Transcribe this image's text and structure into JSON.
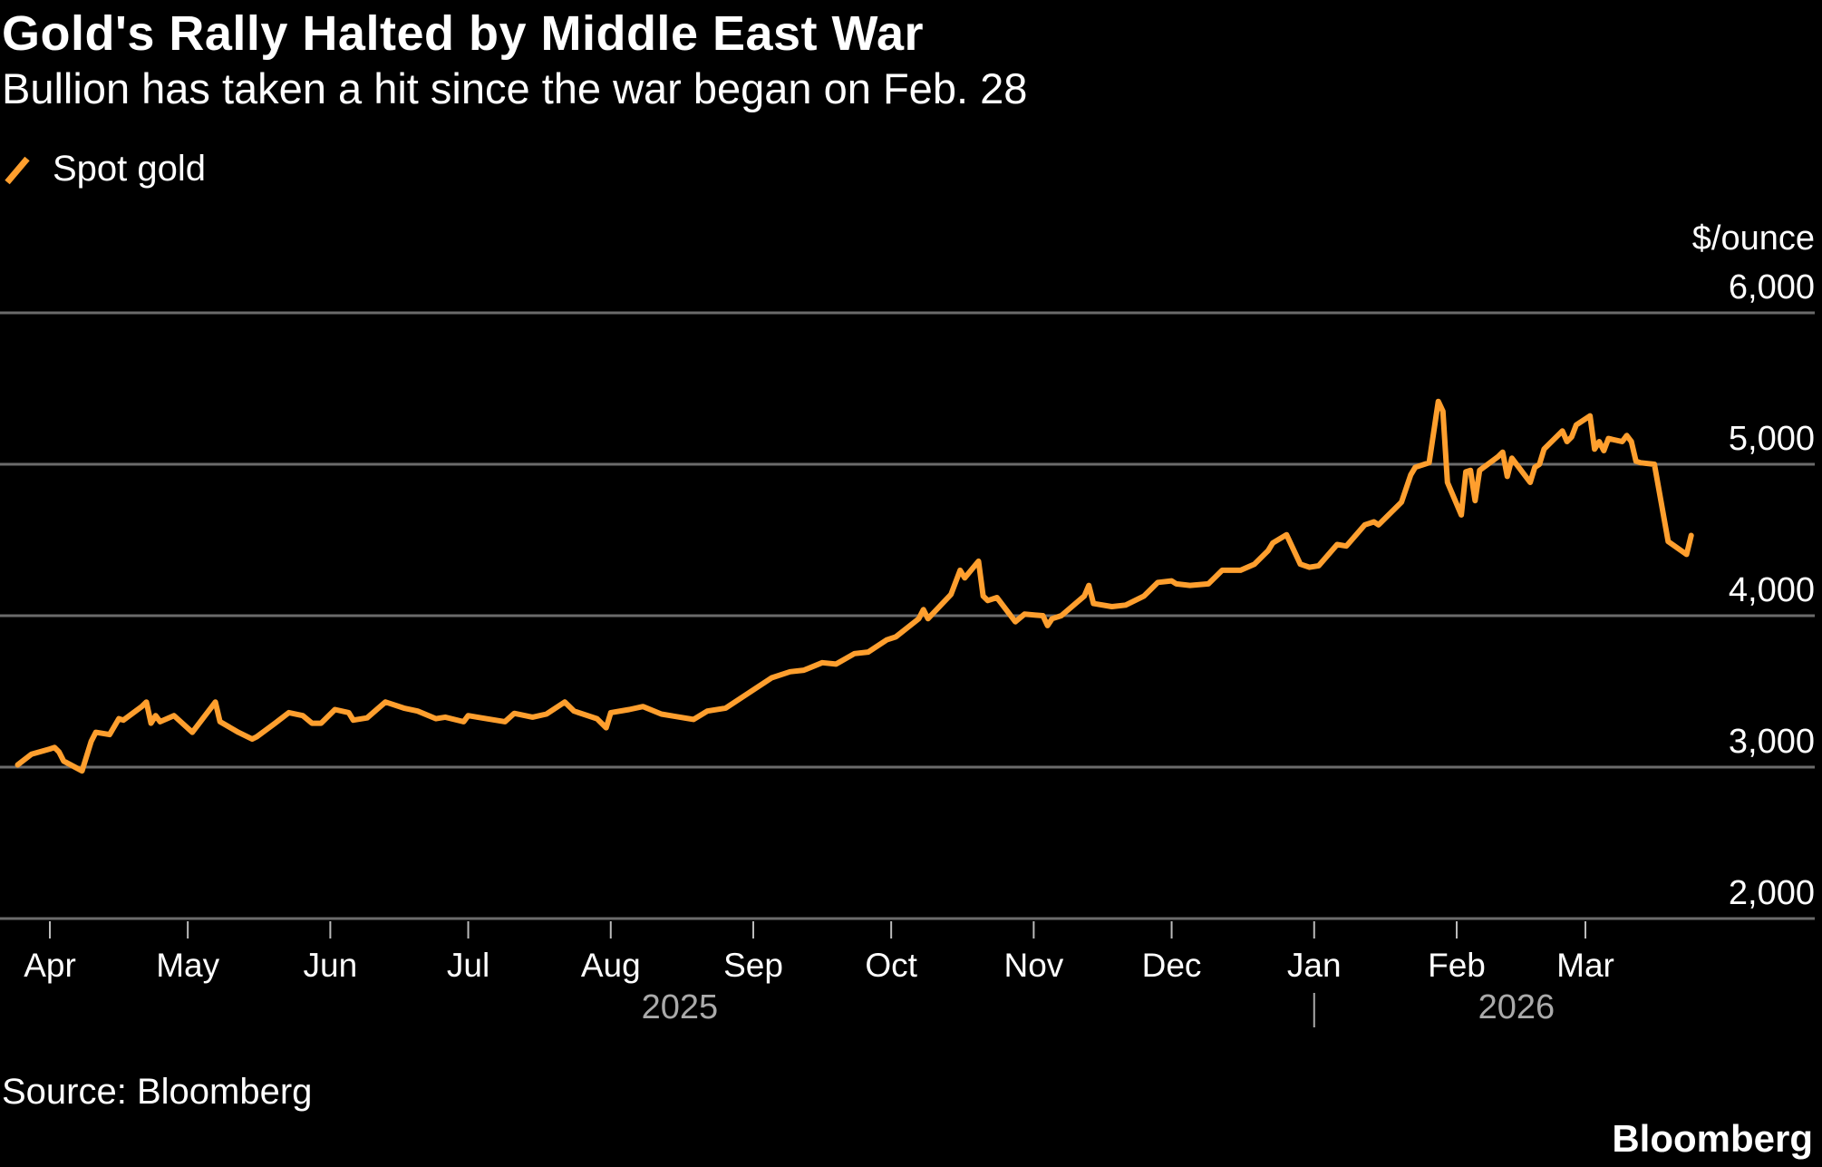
{
  "chart_data": {
    "type": "line",
    "title": "Gold's Rally Halted by Middle East War",
    "subtitle": "Bullion has taken a hit since the war began on Feb. 28",
    "ylabel": "$/ounce",
    "xlabel": "",
    "ylim": [
      2000,
      6000
    ],
    "yticks": [
      6000,
      5000,
      4000,
      3000,
      2000
    ],
    "ytick_labels": [
      "6,000",
      "5,000",
      "4,000",
      "3,000",
      "2,000"
    ],
    "grid": true,
    "legend_placement": "top-left",
    "xticks": [
      {
        "date": "2025-04-01",
        "label": "Apr"
      },
      {
        "date": "2025-05-01",
        "label": "May"
      },
      {
        "date": "2025-06-01",
        "label": "Jun"
      },
      {
        "date": "2025-07-01",
        "label": "Jul"
      },
      {
        "date": "2025-08-01",
        "label": "Aug"
      },
      {
        "date": "2025-09-01",
        "label": "Sep"
      },
      {
        "date": "2025-10-01",
        "label": "Oct"
      },
      {
        "date": "2025-11-01",
        "label": "Nov"
      },
      {
        "date": "2025-12-01",
        "label": "Dec"
      },
      {
        "date": "2026-01-01",
        "label": "Jan"
      },
      {
        "date": "2026-02-01",
        "label": "Feb"
      },
      {
        "date": "2026-03-01",
        "label": "Mar"
      }
    ],
    "years": [
      {
        "label": "2025",
        "center": "2025-08-16"
      },
      {
        "label": "2026",
        "center": "2026-02-14"
      }
    ],
    "year_divider": "2026-01-01",
    "series": [
      {
        "name": "Spot gold",
        "color": "#FF9F2E",
        "points": [
          [
            "2025-03-25",
            3015
          ],
          [
            "2025-03-28",
            3085
          ],
          [
            "2025-04-01",
            3120
          ],
          [
            "2025-04-02",
            3130
          ],
          [
            "2025-04-03",
            3100
          ],
          [
            "2025-04-04",
            3040
          ],
          [
            "2025-04-08",
            2975
          ],
          [
            "2025-04-10",
            3170
          ],
          [
            "2025-04-11",
            3230
          ],
          [
            "2025-04-14",
            3215
          ],
          [
            "2025-04-16",
            3320
          ],
          [
            "2025-04-17",
            3310
          ],
          [
            "2025-04-21",
            3400
          ],
          [
            "2025-04-22",
            3430
          ],
          [
            "2025-04-23",
            3290
          ],
          [
            "2025-04-24",
            3340
          ],
          [
            "2025-04-25",
            3300
          ],
          [
            "2025-04-28",
            3340
          ],
          [
            "2025-05-02",
            3230
          ],
          [
            "2025-05-06",
            3390
          ],
          [
            "2025-05-07",
            3430
          ],
          [
            "2025-05-08",
            3300
          ],
          [
            "2025-05-12",
            3230
          ],
          [
            "2025-05-15",
            3185
          ],
          [
            "2025-05-16",
            3200
          ],
          [
            "2025-05-20",
            3290
          ],
          [
            "2025-05-23",
            3360
          ],
          [
            "2025-05-26",
            3340
          ],
          [
            "2025-05-28",
            3290
          ],
          [
            "2025-05-30",
            3290
          ],
          [
            "2025-06-02",
            3380
          ],
          [
            "2025-06-05",
            3360
          ],
          [
            "2025-06-06",
            3310
          ],
          [
            "2025-06-09",
            3325
          ],
          [
            "2025-06-13",
            3430
          ],
          [
            "2025-06-17",
            3390
          ],
          [
            "2025-06-20",
            3370
          ],
          [
            "2025-06-24",
            3320
          ],
          [
            "2025-06-26",
            3330
          ],
          [
            "2025-06-30",
            3300
          ],
          [
            "2025-07-01",
            3340
          ],
          [
            "2025-07-03",
            3330
          ],
          [
            "2025-07-09",
            3300
          ],
          [
            "2025-07-11",
            3355
          ],
          [
            "2025-07-15",
            3330
          ],
          [
            "2025-07-18",
            3350
          ],
          [
            "2025-07-22",
            3430
          ],
          [
            "2025-07-24",
            3370
          ],
          [
            "2025-07-29",
            3320
          ],
          [
            "2025-07-31",
            3260
          ],
          [
            "2025-08-01",
            3360
          ],
          [
            "2025-08-05",
            3380
          ],
          [
            "2025-08-08",
            3400
          ],
          [
            "2025-08-12",
            3350
          ],
          [
            "2025-08-15",
            3335
          ],
          [
            "2025-08-19",
            3315
          ],
          [
            "2025-08-22",
            3370
          ],
          [
            "2025-08-26",
            3390
          ],
          [
            "2025-08-29",
            3450
          ],
          [
            "2025-09-02",
            3530
          ],
          [
            "2025-09-05",
            3590
          ],
          [
            "2025-09-09",
            3630
          ],
          [
            "2025-09-12",
            3640
          ],
          [
            "2025-09-16",
            3690
          ],
          [
            "2025-09-19",
            3680
          ],
          [
            "2025-09-23",
            3750
          ],
          [
            "2025-09-26",
            3760
          ],
          [
            "2025-09-30",
            3840
          ],
          [
            "2025-10-02",
            3860
          ],
          [
            "2025-10-07",
            3980
          ],
          [
            "2025-10-08",
            4040
          ],
          [
            "2025-10-09",
            3980
          ],
          [
            "2025-10-14",
            4140
          ],
          [
            "2025-10-16",
            4300
          ],
          [
            "2025-10-17",
            4250
          ],
          [
            "2025-10-20",
            4360
          ],
          [
            "2025-10-21",
            4130
          ],
          [
            "2025-10-22",
            4100
          ],
          [
            "2025-10-24",
            4120
          ],
          [
            "2025-10-28",
            3960
          ],
          [
            "2025-10-30",
            4010
          ],
          [
            "2025-11-03",
            4000
          ],
          [
            "2025-11-04",
            3935
          ],
          [
            "2025-11-05",
            3980
          ],
          [
            "2025-11-07",
            4000
          ],
          [
            "2025-11-12",
            4130
          ],
          [
            "2025-11-13",
            4200
          ],
          [
            "2025-11-14",
            4080
          ],
          [
            "2025-11-18",
            4060
          ],
          [
            "2025-11-21",
            4070
          ],
          [
            "2025-11-25",
            4130
          ],
          [
            "2025-11-28",
            4220
          ],
          [
            "2025-12-01",
            4230
          ],
          [
            "2025-12-02",
            4210
          ],
          [
            "2025-12-05",
            4200
          ],
          [
            "2025-12-09",
            4210
          ],
          [
            "2025-12-12",
            4300
          ],
          [
            "2025-12-16",
            4300
          ],
          [
            "2025-12-19",
            4340
          ],
          [
            "2025-12-22",
            4430
          ],
          [
            "2025-12-23",
            4480
          ],
          [
            "2025-12-26",
            4535
          ],
          [
            "2025-12-29",
            4340
          ],
          [
            "2025-12-31",
            4320
          ],
          [
            "2026-01-02",
            4330
          ],
          [
            "2026-01-06",
            4470
          ],
          [
            "2026-01-08",
            4460
          ],
          [
            "2026-01-12",
            4600
          ],
          [
            "2026-01-14",
            4620
          ],
          [
            "2026-01-15",
            4600
          ],
          [
            "2026-01-20",
            4750
          ],
          [
            "2026-01-22",
            4930
          ],
          [
            "2026-01-23",
            4980
          ],
          [
            "2026-01-26",
            5010
          ],
          [
            "2026-01-28",
            5415
          ],
          [
            "2026-01-29",
            5350
          ],
          [
            "2026-01-30",
            4880
          ],
          [
            "2026-02-02",
            4665
          ],
          [
            "2026-02-03",
            4950
          ],
          [
            "2026-02-04",
            4960
          ],
          [
            "2026-02-05",
            4760
          ],
          [
            "2026-02-06",
            4960
          ],
          [
            "2026-02-10",
            5050
          ],
          [
            "2026-02-11",
            5080
          ],
          [
            "2026-02-12",
            4920
          ],
          [
            "2026-02-13",
            5040
          ],
          [
            "2026-02-17",
            4880
          ],
          [
            "2026-02-18",
            4980
          ],
          [
            "2026-02-19",
            5000
          ],
          [
            "2026-02-20",
            5100
          ],
          [
            "2026-02-24",
            5220
          ],
          [
            "2026-02-25",
            5150
          ],
          [
            "2026-02-26",
            5180
          ],
          [
            "2026-02-27",
            5260
          ],
          [
            "2026-03-02",
            5320
          ],
          [
            "2026-03-03",
            5100
          ],
          [
            "2026-03-04",
            5150
          ],
          [
            "2026-03-05",
            5090
          ],
          [
            "2026-03-06",
            5170
          ],
          [
            "2026-03-09",
            5150
          ],
          [
            "2026-03-10",
            5190
          ],
          [
            "2026-03-11",
            5150
          ],
          [
            "2026-03-12",
            5020
          ],
          [
            "2026-03-13",
            5010
          ],
          [
            "2026-03-16",
            5000
          ],
          [
            "2026-03-19",
            4490
          ],
          [
            "2026-03-23",
            4405
          ],
          [
            "2026-03-24",
            4530
          ]
        ]
      }
    ]
  },
  "source": "Source: Bloomberg",
  "brand": "Bloomberg"
}
